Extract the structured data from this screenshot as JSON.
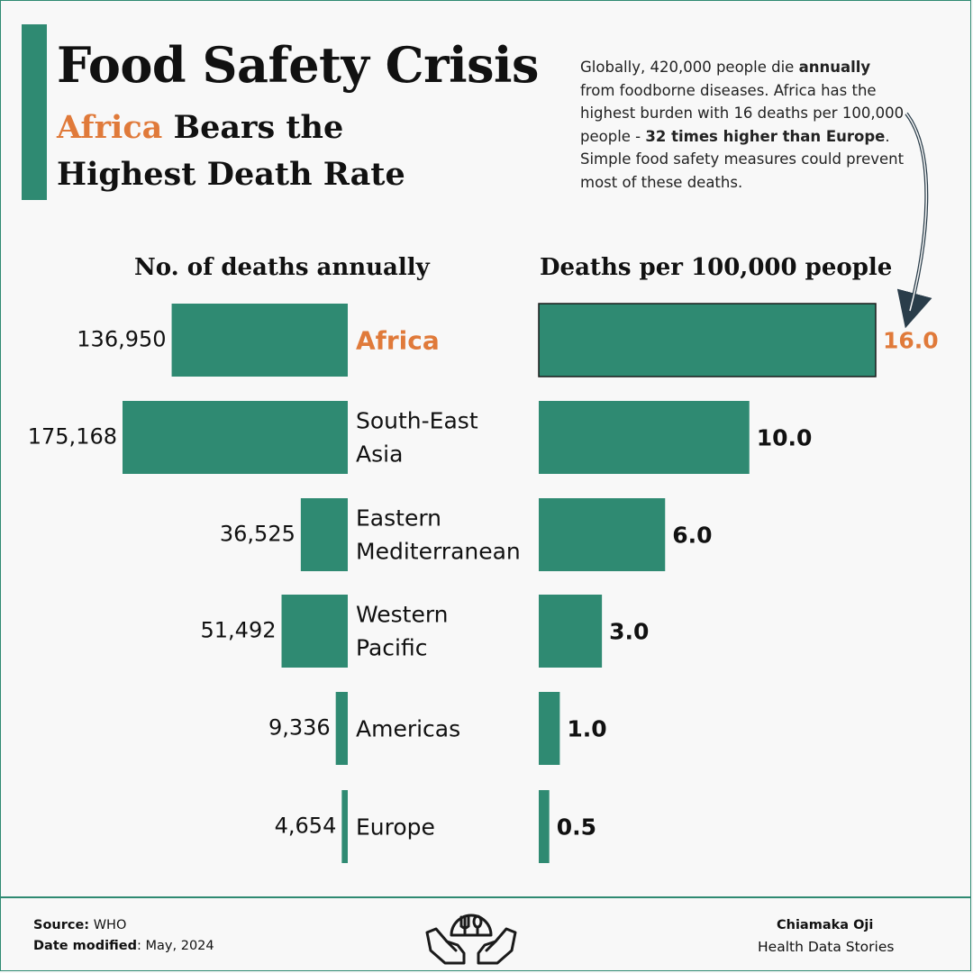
{
  "header": {
    "title": "Food Safety Crisis",
    "subtitle_highlight": "Africa",
    "subtitle_line1_rest": " Bears the",
    "subtitle_line2": "Highest Death Rate"
  },
  "blurb": {
    "p1": "Globally, 420,000 people die ",
    "b1": "annually",
    "p2": " from foodborne diseases. Africa has the highest burden with 16 deaths per 100,000 people - ",
    "b2": "32 times higher than Europe",
    "p3": ". Simple food safety measures could prevent most of these deaths."
  },
  "chart_data": {
    "type": "bar",
    "categories": [
      [
        "Africa"
      ],
      [
        "South-East",
        "Asia"
      ],
      [
        "Eastern",
        "Mediterranean"
      ],
      [
        "Western",
        "Pacific"
      ],
      [
        "Americas"
      ],
      [
        "Europe"
      ]
    ],
    "highlight_category_index": 0,
    "series": [
      {
        "name": "No. of deaths annually",
        "values": [
          136950,
          175168,
          36525,
          51492,
          9336,
          4654
        ],
        "labels": [
          "136,950",
          "175,168",
          "36,525",
          "51,492",
          "9,336",
          "4,654"
        ],
        "direction": "left"
      },
      {
        "name": "Deaths per 100,000 people",
        "values": [
          16.0,
          10.0,
          6.0,
          3.0,
          1.0,
          0.5
        ],
        "labels": [
          "16.0",
          "10.0",
          "6.0",
          "3.0",
          "1.0",
          "0.5"
        ],
        "direction": "right"
      }
    ],
    "colors": {
      "bar": "#2f8a72",
      "highlight": "#e07a3a",
      "text": "#111111"
    }
  },
  "footer": {
    "source_label": "Source:",
    "source_value": " WHO",
    "date_label": "Date modified",
    "date_value": ": May, 2024",
    "author": "Chiamaka Oji",
    "org": "Health Data Stories",
    "logo_icon": "hands-holding-food-icon"
  }
}
